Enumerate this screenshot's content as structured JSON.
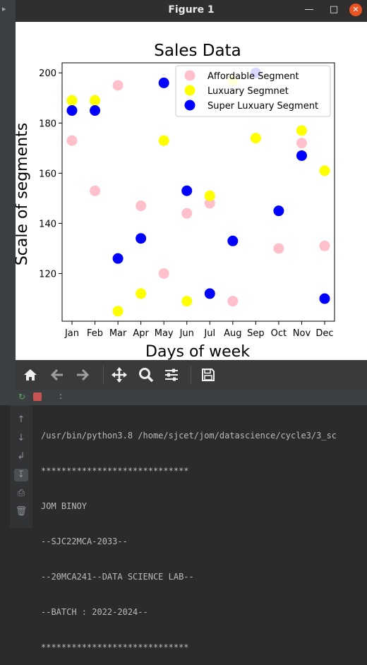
{
  "window": {
    "title": "Figure 1"
  },
  "chart_data": {
    "type": "scatter",
    "title": "Sales Data",
    "xlabel": "Days of week",
    "ylabel": "Scale of segments",
    "categories": [
      "Jan",
      "Feb",
      "Mar",
      "Apr",
      "May",
      "Jun",
      "Jul",
      "Aug",
      "Sep",
      "Oct",
      "Nov",
      "Dec"
    ],
    "ylim": [
      101,
      204
    ],
    "yticks": [
      120,
      140,
      160,
      180,
      200
    ],
    "grid": false,
    "legend_position": "top-right",
    "series": [
      {
        "name": "Affordable Segment",
        "color": "#ffc0cb",
        "values": [
          173,
          153,
          195,
          147,
          120,
          144,
          148,
          109,
          200,
          130,
          172,
          131
        ]
      },
      {
        "name": "Luxuary Segmnet",
        "color": "#ffff00",
        "values": [
          189,
          189,
          105,
          112,
          173,
          109,
          151,
          197,
          174,
          null,
          177,
          161
        ]
      },
      {
        "name": "Super Luxuary Segment",
        "color": "#0000ff",
        "values": [
          185,
          185,
          126,
          134,
          196,
          153,
          112,
          133,
          200,
          145,
          167,
          110
        ]
      }
    ]
  },
  "toolbar": {
    "home": "home-icon",
    "back": "arrow-left-icon",
    "forward": "arrow-right-icon",
    "pan": "move-icon",
    "zoom": "zoom-icon",
    "configure": "sliders-icon",
    "save": "save-icon"
  },
  "console": {
    "lines": [
      "/usr/bin/python3.8 /home/sjcet/jom/datascience/cycle3/3_sc",
      "*****************************",
      "JOM BINOY",
      "--SJC22MCA-2033--",
      "--20MCA241--DATA SCIENCE LAB--",
      "--BATCH : 2022-2024--",
      "*****************************"
    ]
  },
  "run_strip": {
    "separator": ":"
  }
}
